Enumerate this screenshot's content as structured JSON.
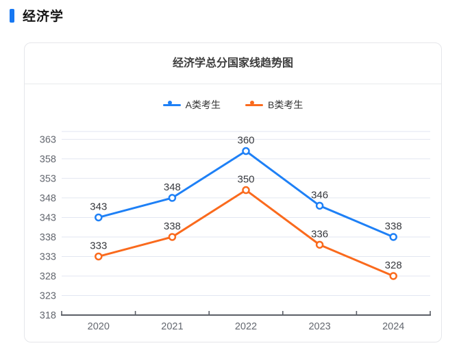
{
  "header": {
    "title": "经济学"
  },
  "card": {
    "title": "经济学总分国家线趋势图"
  },
  "colors": {
    "accent": "#1778F2",
    "series_a": "#1E80F6",
    "series_b": "#FA6A1D",
    "grid_line": "#E2E6F1",
    "axis_line": "#5A5E66",
    "tick_label": "#63676F",
    "data_label": "#36383D"
  },
  "chart_data": {
    "type": "line",
    "title": "经济学总分国家线趋势图",
    "categories": [
      "2020",
      "2021",
      "2022",
      "2023",
      "2024"
    ],
    "series": [
      {
        "name": "A类考生",
        "color": "#1E80F6",
        "values": [
          343,
          348,
          360,
          346,
          338
        ]
      },
      {
        "name": "B类考生",
        "color": "#FA6A1D",
        "values": [
          333,
          338,
          350,
          336,
          328
        ]
      }
    ],
    "yticks": [
      318,
      323,
      328,
      333,
      338,
      343,
      348,
      353,
      358,
      363
    ],
    "ylim": [
      318,
      365
    ],
    "xlabel": "",
    "ylabel": "",
    "grid": true,
    "legend_position": "top",
    "marker": "hollow-circle",
    "data_labels": true
  }
}
